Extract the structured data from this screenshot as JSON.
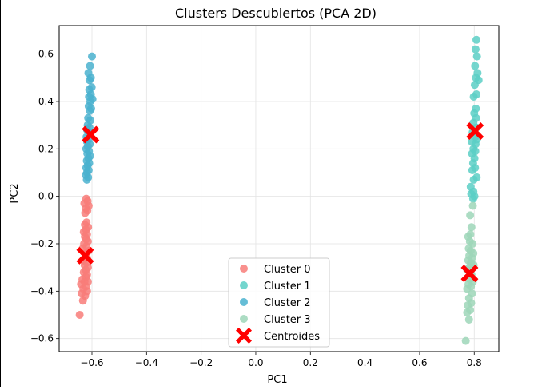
{
  "chart_data": {
    "type": "scatter",
    "title": "Clusters Descubiertos (PCA 2D)",
    "xlabel": "PC1",
    "ylabel": "PC2",
    "xlim": [
      -0.72,
      0.89
    ],
    "ylim": [
      -0.655,
      0.72
    ],
    "xticks": [
      -0.6,
      -0.4,
      -0.2,
      0.0,
      0.2,
      0.4,
      0.6,
      0.8
    ],
    "yticks": [
      -0.6,
      -0.4,
      -0.2,
      0.0,
      0.2,
      0.4,
      0.6
    ],
    "xtick_labels": [
      "−0.6",
      "−0.4",
      "−0.2",
      "0.0",
      "0.2",
      "0.4",
      "0.6",
      "0.8"
    ],
    "ytick_labels": [
      "−0.6",
      "−0.4",
      "−0.2",
      "0.0",
      "0.2",
      "0.4",
      "0.6"
    ],
    "grid": true,
    "legend_position": "bottom-center",
    "series": [
      {
        "name": "Cluster 0",
        "color": "#f87c79",
        "marker": "circle",
        "points": [
          [
            -0.621,
            -0.01
          ],
          [
            -0.616,
            -0.02
          ],
          [
            -0.628,
            -0.03
          ],
          [
            -0.612,
            -0.04
          ],
          [
            -0.622,
            -0.05
          ],
          [
            -0.617,
            -0.06
          ],
          [
            -0.625,
            -0.07
          ],
          [
            -0.62,
            -0.11
          ],
          [
            -0.626,
            -0.12
          ],
          [
            -0.614,
            -0.13
          ],
          [
            -0.622,
            -0.14
          ],
          [
            -0.63,
            -0.15
          ],
          [
            -0.618,
            -0.16
          ],
          [
            -0.626,
            -0.17
          ],
          [
            -0.621,
            -0.18
          ],
          [
            -0.615,
            -0.19
          ],
          [
            -0.629,
            -0.2
          ],
          [
            -0.62,
            -0.21
          ],
          [
            -0.634,
            -0.22
          ],
          [
            -0.612,
            -0.23
          ],
          [
            -0.624,
            -0.24
          ],
          [
            -0.618,
            -0.26
          ],
          [
            -0.632,
            -0.27
          ],
          [
            -0.62,
            -0.28
          ],
          [
            -0.627,
            -0.29
          ],
          [
            -0.615,
            -0.3
          ],
          [
            -0.623,
            -0.31
          ],
          [
            -0.63,
            -0.32
          ],
          [
            -0.618,
            -0.33
          ],
          [
            -0.622,
            -0.34
          ],
          [
            -0.635,
            -0.35
          ],
          [
            -0.627,
            -0.36
          ],
          [
            -0.615,
            -0.36
          ],
          [
            -0.64,
            -0.37
          ],
          [
            -0.622,
            -0.38
          ],
          [
            -0.632,
            -0.39
          ],
          [
            -0.618,
            -0.4
          ],
          [
            -0.638,
            -0.41
          ],
          [
            -0.625,
            -0.42
          ],
          [
            -0.633,
            -0.44
          ],
          [
            -0.645,
            -0.5
          ]
        ]
      },
      {
        "name": "Cluster 1",
        "color": "#5ccfc6",
        "marker": "circle",
        "points": [
          [
            0.808,
            0.66
          ],
          [
            0.805,
            0.62
          ],
          [
            0.81,
            0.59
          ],
          [
            0.803,
            0.55
          ],
          [
            0.812,
            0.52
          ],
          [
            0.806,
            0.5
          ],
          [
            0.816,
            0.49
          ],
          [
            0.802,
            0.47
          ],
          [
            0.808,
            0.43
          ],
          [
            0.798,
            0.42
          ],
          [
            0.806,
            0.37
          ],
          [
            0.8,
            0.35
          ],
          [
            0.807,
            0.33
          ],
          [
            0.797,
            0.31
          ],
          [
            0.808,
            0.29
          ],
          [
            0.794,
            0.27
          ],
          [
            0.803,
            0.25
          ],
          [
            0.81,
            0.24
          ],
          [
            0.791,
            0.23
          ],
          [
            0.805,
            0.22
          ],
          [
            0.797,
            0.2
          ],
          [
            0.804,
            0.19
          ],
          [
            0.792,
            0.18
          ],
          [
            0.801,
            0.16
          ],
          [
            0.796,
            0.14
          ],
          [
            0.803,
            0.12
          ],
          [
            0.793,
            0.11
          ],
          [
            0.809,
            0.08
          ],
          [
            0.798,
            0.07
          ],
          [
            0.787,
            0.04
          ],
          [
            0.797,
            0.02
          ],
          [
            0.789,
            0.01
          ],
          [
            0.796,
            -0.01
          ],
          [
            0.801,
            0.0
          ]
        ]
      },
      {
        "name": "Cluster 2",
        "color": "#4ab2cf",
        "marker": "circle",
        "points": [
          [
            -0.6,
            0.59
          ],
          [
            -0.607,
            0.55
          ],
          [
            -0.613,
            0.52
          ],
          [
            -0.604,
            0.5
          ],
          [
            -0.609,
            0.49
          ],
          [
            -0.601,
            0.46
          ],
          [
            -0.61,
            0.45
          ],
          [
            -0.604,
            0.43
          ],
          [
            -0.611,
            0.42
          ],
          [
            -0.598,
            0.41
          ],
          [
            -0.606,
            0.4
          ],
          [
            -0.612,
            0.38
          ],
          [
            -0.603,
            0.37
          ],
          [
            -0.608,
            0.36
          ],
          [
            -0.614,
            0.33
          ],
          [
            -0.606,
            0.32
          ],
          [
            -0.616,
            0.3
          ],
          [
            -0.609,
            0.29
          ],
          [
            -0.618,
            0.28
          ],
          [
            -0.61,
            0.27
          ],
          [
            -0.62,
            0.25
          ],
          [
            -0.612,
            0.24
          ],
          [
            -0.618,
            0.23
          ],
          [
            -0.608,
            0.22
          ],
          [
            -0.615,
            0.21
          ],
          [
            -0.621,
            0.2
          ],
          [
            -0.611,
            0.19
          ],
          [
            -0.617,
            0.18
          ],
          [
            -0.607,
            0.17
          ],
          [
            -0.613,
            0.16
          ],
          [
            -0.619,
            0.15
          ],
          [
            -0.61,
            0.14
          ],
          [
            -0.616,
            0.13
          ],
          [
            -0.621,
            0.12
          ],
          [
            -0.612,
            0.11
          ],
          [
            -0.618,
            0.1
          ],
          [
            -0.623,
            0.09
          ],
          [
            -0.614,
            0.08
          ],
          [
            -0.619,
            0.07
          ]
        ]
      },
      {
        "name": "Cluster 3",
        "color": "#9dd6b8",
        "marker": "circle",
        "points": [
          [
            0.795,
            -0.04
          ],
          [
            0.785,
            -0.08
          ],
          [
            0.79,
            -0.13
          ],
          [
            0.786,
            -0.16
          ],
          [
            0.778,
            -0.17
          ],
          [
            0.784,
            -0.19
          ],
          [
            0.794,
            -0.2
          ],
          [
            0.78,
            -0.22
          ],
          [
            0.787,
            -0.23
          ],
          [
            0.797,
            -0.24
          ],
          [
            0.782,
            -0.25
          ],
          [
            0.792,
            -0.26
          ],
          [
            0.778,
            -0.27
          ],
          [
            0.788,
            -0.28
          ],
          [
            0.798,
            -0.29
          ],
          [
            0.781,
            -0.3
          ],
          [
            0.774,
            -0.31
          ],
          [
            0.79,
            -0.33
          ],
          [
            0.784,
            -0.35
          ],
          [
            0.795,
            -0.36
          ],
          [
            0.779,
            -0.37
          ],
          [
            0.788,
            -0.38
          ],
          [
            0.774,
            -0.39
          ],
          [
            0.792,
            -0.41
          ],
          [
            0.781,
            -0.43
          ],
          [
            0.789,
            -0.45
          ],
          [
            0.776,
            -0.46
          ],
          [
            0.785,
            -0.48
          ],
          [
            0.774,
            -0.49
          ],
          [
            0.781,
            -0.52
          ],
          [
            0.769,
            -0.61
          ]
        ]
      },
      {
        "name": "Centroides",
        "color": "#ff0000",
        "marker": "X",
        "points": [
          [
            -0.605,
            0.26
          ],
          [
            -0.625,
            -0.25
          ],
          [
            0.803,
            0.275
          ],
          [
            0.783,
            -0.325
          ]
        ]
      }
    ]
  }
}
